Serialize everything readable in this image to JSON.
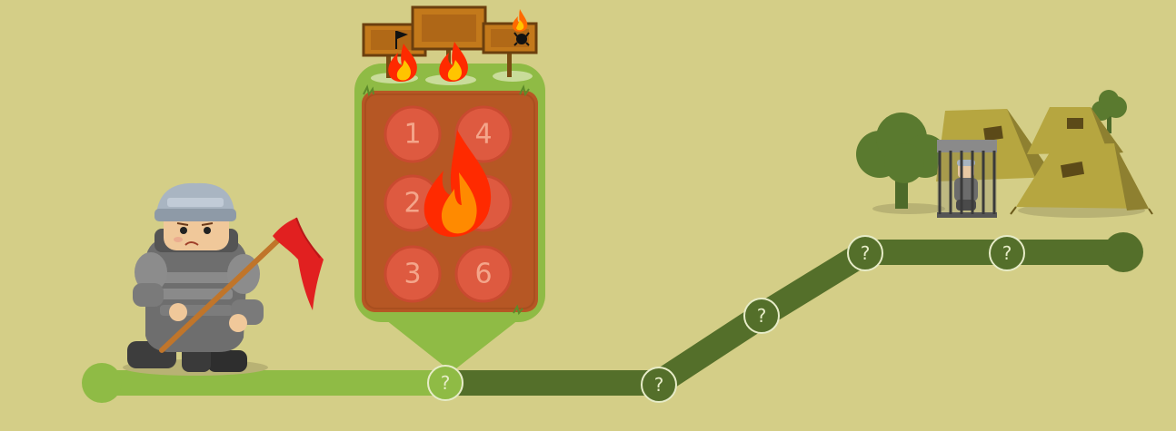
{
  "colors": {
    "background": "#d4ce87",
    "path_completed": "#8fbb45",
    "path_remaining": "#546f2a",
    "board_frame": "#8fbb45",
    "board_fill": "#b65724",
    "slot_circle": "#de5a40",
    "fire_outer": "#ff2a00",
    "fire_inner": "#ff8a00",
    "flag": "#e12020"
  },
  "board": {
    "slots": [
      {
        "label": "1"
      },
      {
        "label": "4"
      },
      {
        "label": "2"
      },
      {
        "label": "5"
      },
      {
        "label": "3"
      },
      {
        "label": "6"
      }
    ]
  },
  "path": {
    "nodes": [
      {
        "label": "?",
        "state": "current"
      },
      {
        "label": "?",
        "state": "locked"
      },
      {
        "label": "?",
        "state": "locked"
      },
      {
        "label": "?",
        "state": "locked"
      },
      {
        "label": "?",
        "state": "locked"
      }
    ]
  },
  "icons": {
    "character": "soldier-with-red-flag",
    "board_fire": "fire-icon",
    "goal": "army-camp-with-caged-prisoner"
  }
}
